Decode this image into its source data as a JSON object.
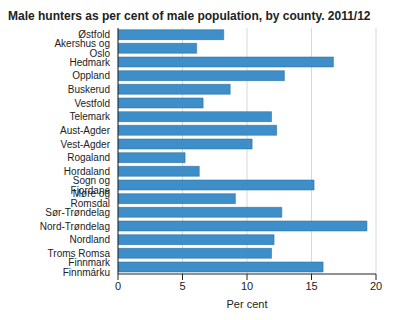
{
  "chart_data": {
    "type": "bar",
    "title": "Male hunters as per cent of male population, by county. 2011/12",
    "orientation": "horizontal",
    "categories": [
      "Østfold",
      "Akershus og Oslo",
      "Hedmark",
      "Oppland",
      "Buskerud",
      "Vestfold",
      "Telemark",
      "Aust-Agder",
      "Vest-Agder",
      "Rogaland",
      "Hordaland",
      "Sogn og Fjordane",
      "Møre og Romsdal",
      "Sør-Trøndelag",
      "Nord-Trøndelag",
      "Nordland",
      "Troms Romsa",
      "Finnmark Finnmárku"
    ],
    "values": [
      8.2,
      6.1,
      16.7,
      12.9,
      8.7,
      6.6,
      11.9,
      12.3,
      10.4,
      5.2,
      6.3,
      15.2,
      9.1,
      12.7,
      19.3,
      12.1,
      11.9,
      15.9
    ],
    "color": "#3d8ec9",
    "x_label": "Per cent",
    "xlim": [
      0,
      20
    ],
    "xticks": [
      0,
      5,
      10,
      15,
      20
    ],
    "grid": true
  }
}
